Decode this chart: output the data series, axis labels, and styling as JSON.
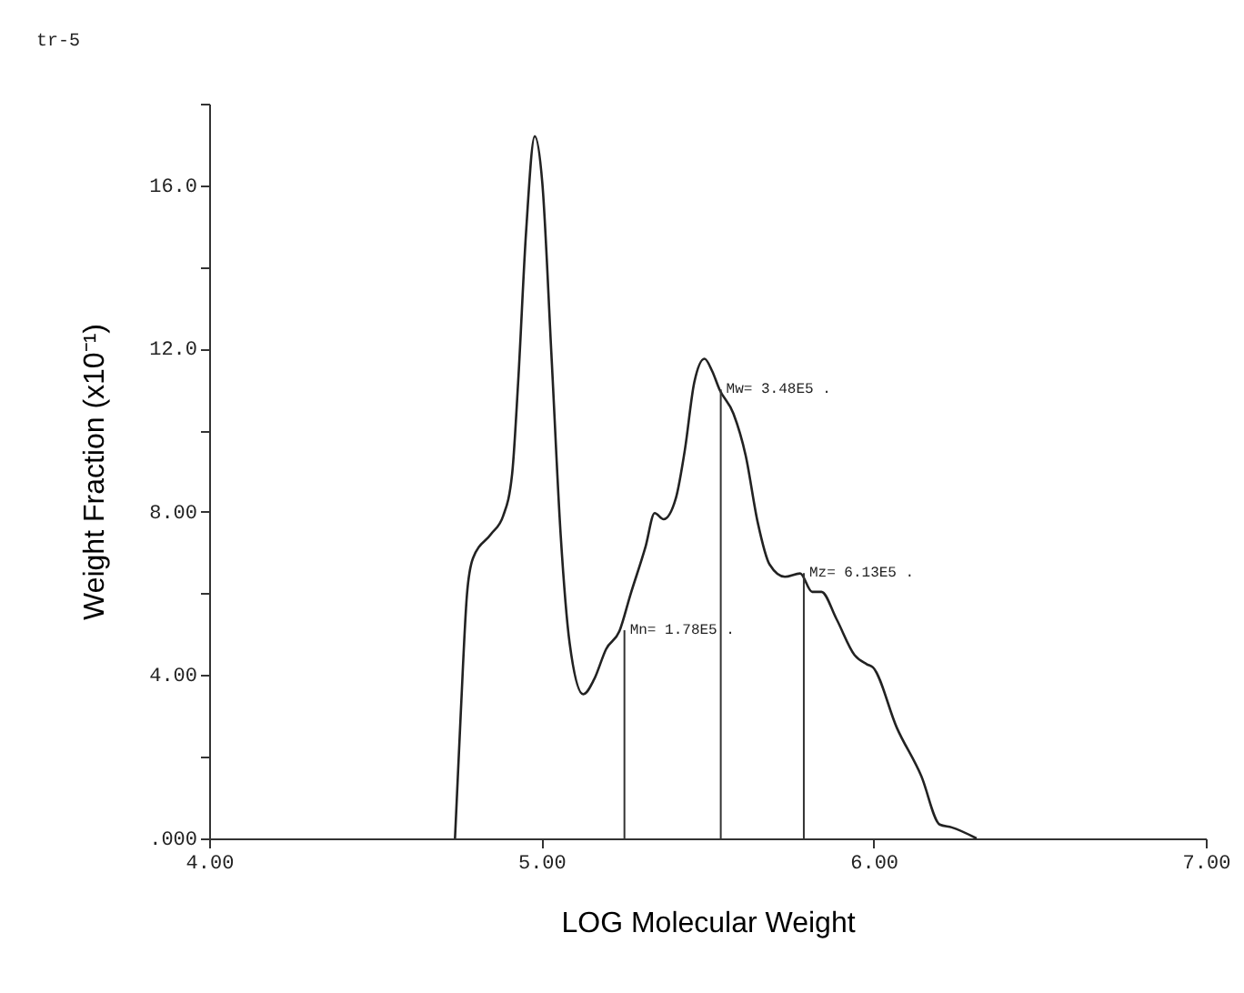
{
  "chart_data": {
    "type": "line",
    "xlabel": "LOG Molecular Weight",
    "ylabel": "Weight Fraction (x10⁻¹)",
    "x": [
      4.74,
      4.757,
      4.776,
      4.794,
      4.848,
      4.885,
      4.912,
      4.93,
      4.954,
      4.98,
      5.003,
      5.03,
      5.058,
      5.085,
      5.126,
      5.159,
      5.195,
      5.235,
      5.268,
      5.314,
      5.341,
      5.368,
      5.405,
      5.432,
      5.46,
      5.491,
      5.514,
      5.536,
      5.578,
      5.615,
      5.651,
      5.687,
      5.733,
      5.779,
      5.815,
      5.843,
      5.888,
      5.943,
      5.979,
      5.998,
      6.07,
      6.144,
      6.199,
      6.235,
      6.31
    ],
    "series": [
      {
        "color": "#222222",
        "values": [
          0,
          3.0,
          5.97,
          6.86,
          7.45,
          7.9,
          8.93,
          11.16,
          14.86,
          17.2,
          16.04,
          11.9,
          7.45,
          4.79,
          3.53,
          3.9,
          4.64,
          5.08,
          5.97,
          7.16,
          7.97,
          7.82,
          8.34,
          9.52,
          11.16,
          11.75,
          11.45,
          11.0,
          10.41,
          9.38,
          7.75,
          6.71,
          6.41,
          6.49,
          6.04,
          6.04,
          5.38,
          4.49,
          4.27,
          4.19,
          2.71,
          1.52,
          0.34,
          0.27,
          0
        ]
      }
    ],
    "xlim": [
      4.0,
      7.0
    ],
    "xticks": [
      {
        "value": 4,
        "label": "4.00"
      },
      {
        "value": 5,
        "label": "5.00"
      },
      {
        "value": 6,
        "label": "6.00"
      },
      {
        "value": 7,
        "label": "7.00"
      }
    ],
    "ylim": [
      0,
      18
    ],
    "yticks": [
      {
        "value": 0,
        "label": ".000"
      },
      {
        "value": 2,
        "label": null
      },
      {
        "value": 4,
        "label": "4.00"
      },
      {
        "value": 6,
        "label": null
      },
      {
        "value": 8,
        "label": "8.00"
      },
      {
        "value": 10,
        "label": null
      },
      {
        "value": 12,
        "label": "12.0"
      },
      {
        "value": 14,
        "label": null
      },
      {
        "value": 16,
        "label": "16.0"
      },
      {
        "value": 18,
        "label": null
      }
    ],
    "annotations": [
      "tr-5",
      {
        "text": "Mn= 1.78E5 .",
        "x": 5.25,
        "y": 5.1
      },
      {
        "text": "Mw= 3.48E5 .",
        "x": 5.54,
        "y": 11.0
      },
      {
        "text": "Mz= 6.13E5 .",
        "x": 5.79,
        "y": 6.5
      }
    ],
    "grid": false,
    "marker": "none",
    "line_style": "solid"
  }
}
